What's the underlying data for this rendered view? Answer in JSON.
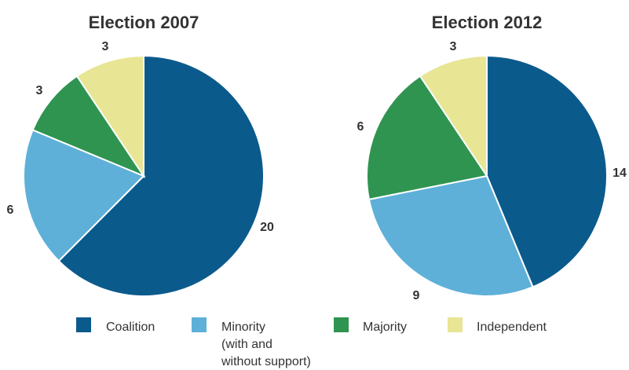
{
  "chart_data": [
    {
      "type": "pie",
      "title": "Election 2007",
      "categories": [
        "Coalition",
        "Minority (with and without support)",
        "Majority",
        "Independent"
      ],
      "values": [
        20,
        6,
        3,
        3
      ],
      "colors": [
        "#0b5a8c",
        "#5eb0d8",
        "#2f9450",
        "#e8e594"
      ],
      "data_labels": [
        "20",
        "6",
        "3",
        "3"
      ]
    },
    {
      "type": "pie",
      "title": "Election 2012",
      "categories": [
        "Coalition",
        "Minority (with and without support)",
        "Majority",
        "Independent"
      ],
      "values": [
        14,
        9,
        6,
        3
      ],
      "colors": [
        "#0b5a8c",
        "#5eb0d8",
        "#2f9450",
        "#e8e594"
      ],
      "data_labels": [
        "14",
        "9",
        "6",
        "3"
      ]
    }
  ],
  "legend": {
    "items": [
      {
        "label_lines": [
          "Coalition"
        ],
        "color": "#0b5a8c"
      },
      {
        "label_lines": [
          "Minority",
          "(with and",
          "without support)"
        ],
        "color": "#5eb0d8"
      },
      {
        "label_lines": [
          "Majority"
        ],
        "color": "#2f9450"
      },
      {
        "label_lines": [
          "Independent"
        ],
        "color": "#e8e594"
      }
    ]
  }
}
